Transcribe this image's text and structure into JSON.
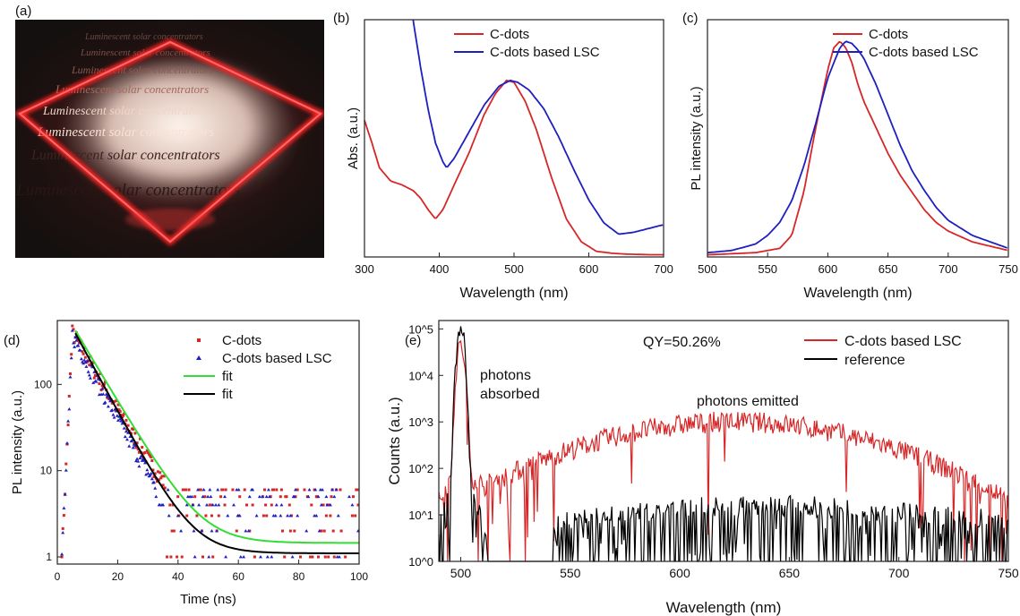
{
  "panel_labels": {
    "a": "(a)",
    "b": "(b)",
    "c": "(c)",
    "d": "(d)",
    "e": "(e)"
  },
  "photo": {
    "text_lines": [
      "Luminescent solar concentrators",
      "Luminescent solar concentrators",
      "Luminescent solar concentrators",
      "Luminescent solar concentrators",
      "Luminescent solar concentrators",
      "Luminescent solar concentrators",
      "Luminescent solar concentrators",
      "Luminescent solar concentrators"
    ],
    "colors": {
      "background": "#14100f",
      "glow": "#ff1a1a"
    }
  },
  "colors": {
    "red": "#d62728",
    "blue": "#1f1fbf",
    "green": "#33dd33",
    "black": "#000000"
  },
  "chart_data": [
    {
      "id": "b",
      "type": "line",
      "xlabel": "Wavelength (nm)",
      "ylabel": "Abs. (a.u.)",
      "xlim": [
        300,
        700
      ],
      "ylim": [
        0,
        1.25
      ],
      "xticks": [
        300,
        400,
        500,
        600,
        700
      ],
      "legend_position": "top-right",
      "series": [
        {
          "name": "C-dots",
          "color": "#d62728",
          "x": [
            300,
            310,
            320,
            335,
            350,
            365,
            375,
            385,
            395,
            405,
            420,
            440,
            460,
            475,
            490,
            500,
            515,
            530,
            550,
            570,
            590,
            610,
            630,
            650,
            680,
            700
          ],
          "y": [
            0.72,
            0.6,
            0.47,
            0.4,
            0.38,
            0.35,
            0.31,
            0.25,
            0.2,
            0.25,
            0.38,
            0.55,
            0.75,
            0.86,
            0.93,
            0.92,
            0.82,
            0.67,
            0.42,
            0.2,
            0.08,
            0.03,
            0.02,
            0.015,
            0.012,
            0.012
          ]
        },
        {
          "name": "C-dots based LSC",
          "color": "#1f1fbf",
          "x": [
            365,
            375,
            385,
            395,
            405,
            410,
            420,
            440,
            460,
            480,
            495,
            505,
            520,
            540,
            560,
            580,
            600,
            620,
            640,
            660,
            680,
            700
          ],
          "y": [
            1.25,
            1.0,
            0.78,
            0.6,
            0.5,
            0.47,
            0.52,
            0.66,
            0.8,
            0.9,
            0.93,
            0.92,
            0.88,
            0.78,
            0.63,
            0.46,
            0.3,
            0.18,
            0.12,
            0.13,
            0.15,
            0.17
          ]
        }
      ]
    },
    {
      "id": "c",
      "type": "line",
      "xlabel": "Wavelength (nm)",
      "ylabel": "PL intensity (a.u.)",
      "xlim": [
        500,
        750
      ],
      "ylim": [
        0,
        1.1
      ],
      "xticks": [
        500,
        550,
        600,
        650,
        700,
        750
      ],
      "legend_position": "top-right",
      "series": [
        {
          "name": "C-dots",
          "color": "#d62728",
          "x": [
            500,
            540,
            560,
            570,
            580,
            590,
            600,
            605,
            610,
            615,
            620,
            625,
            630,
            640,
            650,
            660,
            670,
            680,
            690,
            700,
            720,
            750
          ],
          "y": [
            0.01,
            0.02,
            0.04,
            0.1,
            0.3,
            0.6,
            0.87,
            0.97,
            1.0,
            0.97,
            0.9,
            0.8,
            0.72,
            0.6,
            0.48,
            0.38,
            0.3,
            0.22,
            0.16,
            0.12,
            0.07,
            0.03
          ]
        },
        {
          "name": "C-dots based LSC",
          "color": "#1f1fbf",
          "x": [
            500,
            520,
            540,
            550,
            560,
            570,
            580,
            590,
            600,
            610,
            615,
            620,
            625,
            630,
            640,
            650,
            660,
            670,
            680,
            690,
            700,
            720,
            750
          ],
          "y": [
            0.02,
            0.03,
            0.06,
            0.1,
            0.16,
            0.26,
            0.42,
            0.62,
            0.83,
            0.97,
            1.0,
            0.99,
            0.96,
            0.92,
            0.8,
            0.66,
            0.52,
            0.4,
            0.31,
            0.23,
            0.17,
            0.1,
            0.04
          ]
        }
      ]
    },
    {
      "id": "d",
      "type": "scatter",
      "xlabel": "Time (ns)",
      "ylabel": "PL intensity (a.u.)",
      "xlim": [
        0,
        100
      ],
      "ylim": [
        1,
        500
      ],
      "yscale": "log",
      "xticks": [
        0,
        20,
        40,
        60,
        80,
        100
      ],
      "yticks": [
        1,
        10,
        100
      ],
      "legend_position": "top-right",
      "series": [
        {
          "name": "C-dots",
          "marker": "square",
          "color": "#d62728",
          "tau": 7.2,
          "peak": 400,
          "t0": 5,
          "floor": 1.5
        },
        {
          "name": "C-dots based LSC",
          "marker": "triangle",
          "color": "#1f1fbf",
          "tau": 6.6,
          "peak": 370,
          "t0": 5,
          "floor": 1.2
        },
        {
          "name": "fit",
          "type": "line",
          "color": "#33dd33",
          "tau": 7.4,
          "peak": 420,
          "t0": 6,
          "floor": 1.45
        },
        {
          "name": "fit",
          "type": "line",
          "color": "#000000",
          "tau": 6.7,
          "peak": 390,
          "t0": 6,
          "floor": 1.1
        }
      ]
    },
    {
      "id": "e",
      "type": "line",
      "xlabel": "Wavelength (nm)",
      "ylabel": "Counts (a.u.)",
      "xlim": [
        490,
        750
      ],
      "ylim": [
        1,
        150000
      ],
      "yscale": "log",
      "xticks": [
        500,
        550,
        600,
        650,
        700,
        750
      ],
      "yticks": [
        "10^0",
        "10^1",
        "10^2",
        "10^3",
        "10^4",
        "10^5"
      ],
      "legend_position": "top-right",
      "annotations": [
        "QY=50.26%",
        "photons",
        "absorbed",
        "photons emitted"
      ],
      "series": [
        {
          "name": "C-dots based LSC",
          "color": "#d62728",
          "peak_x": 500,
          "peak_y": 45000,
          "emission_center": 625,
          "emission_peak": 1000
        },
        {
          "name": "reference",
          "color": "#000000",
          "peak_x": 500,
          "peak_y": 130000
        }
      ]
    }
  ]
}
